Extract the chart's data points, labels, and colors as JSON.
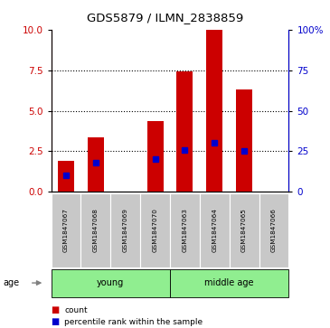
{
  "title": "GDS5879 / ILMN_2838859",
  "samples": [
    "GSM1847067",
    "GSM1847068",
    "GSM1847069",
    "GSM1847070",
    "GSM1847063",
    "GSM1847064",
    "GSM1847065",
    "GSM1847066"
  ],
  "count_values": [
    1.9,
    3.35,
    0.0,
    4.35,
    7.4,
    10.0,
    6.3,
    0.0
  ],
  "percentile_values": [
    10,
    18,
    0,
    20,
    26,
    30,
    25,
    0
  ],
  "groups": [
    {
      "label": "young",
      "start": 0,
      "end": 4
    },
    {
      "label": "middle age",
      "start": 4,
      "end": 8
    }
  ],
  "bar_color": "#CC0000",
  "marker_color": "#0000CC",
  "left_ylim": [
    0,
    10
  ],
  "right_ylim": [
    0,
    100
  ],
  "left_yticks": [
    0,
    2.5,
    5,
    7.5,
    10
  ],
  "right_yticks": [
    0,
    25,
    50,
    75,
    100
  ],
  "right_yticklabels": [
    "0",
    "25",
    "50",
    "75",
    "100%"
  ],
  "grid_values": [
    2.5,
    5,
    7.5
  ],
  "bar_width": 0.55,
  "label_box_color": "#C8C8C8",
  "age_row_color": "#90EE90",
  "legend_count_label": "count",
  "legend_pct_label": "percentile rank within the sample",
  "age_label": "age"
}
